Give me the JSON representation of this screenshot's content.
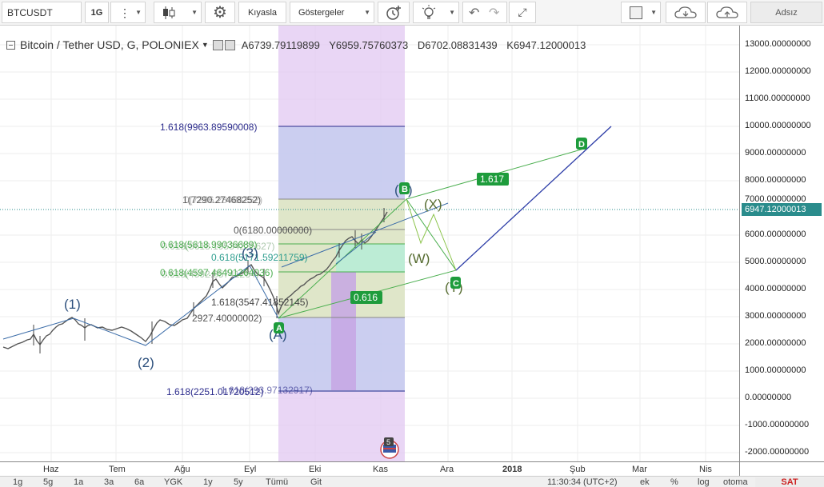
{
  "toolbar": {
    "symbol": "BTCUSDT",
    "interval": "1G",
    "compare_label": "Kıyasla",
    "indicators_label": "Göstergeler",
    "layout_name": "Adsız",
    "icons": [
      "more-vert-icon",
      "candlestick-icon",
      "gear-icon",
      "alert-icon",
      "lightbulb-icon",
      "undo-icon",
      "redo-icon",
      "fullscreen-icon",
      "layout-square-icon",
      "cloud-download-icon",
      "cloud-upload-icon"
    ]
  },
  "legend": {
    "title": "Bitcoin / Tether USD, G, POLONIEX",
    "open": "A6739.79119899",
    "high": "Y6959.75760373",
    "low": "D6702.08831439",
    "close": "K6947.12000013"
  },
  "price_axis": {
    "ticks": [
      "13000.00000000",
      "12000.00000000",
      "11000.00000000",
      "10000.00000000",
      "9000.00000000",
      "8000.00000000",
      "7000.00000000",
      "6000.00000000",
      "5000.00000000",
      "4000.00000000",
      "3000.00000000",
      "2000.00000000",
      "1000.00000000",
      "0.00000000",
      "-1000.00000000",
      "-2000.00000000"
    ],
    "current_price": "6947.12000013",
    "current_color": "#2a8c8c"
  },
  "time_axis": {
    "labels": [
      "Haz",
      "Tem",
      "Ağu",
      "Eyl",
      "Eki",
      "Kas",
      "Ara",
      "2018",
      "Şub",
      "Mar",
      "Nis"
    ]
  },
  "annotations": {
    "fib_top": "1.618(9963.89590008)",
    "fib_b": "1(7290.27468252)",
    "fib_b_overlap": "0(7296.28488252)",
    "fib_zero": "0(6180.00000000)",
    "fib_green1": "0.618(5618.99036689)",
    "fib_green1b": "0.618(5618.19534225627)",
    "fib_teal": "0.618(5171.59211759)",
    "fib_green2": "0.618(4597.46491264036)",
    "fib_green2b": "0.618(4592.85741264)",
    "fib_mid": "1.618(3547.41852145)",
    "fib_low": "2927.40000002)",
    "fib_bottom": "1.618(2251.01720512)",
    "fib_bottom2": "1.618(293.97132917)",
    "wave_1": "(1)",
    "wave_2": "(2)",
    "wave_3": "(3)",
    "wave_a": "A",
    "wave_b": "B",
    "wave_c": "C",
    "wave_d": "D",
    "wave_x": "(X)",
    "wave_w": "(W)",
    "wave_y": "(Y)",
    "wave_a_paren": "(A)",
    "wave_b_paren": "(B)",
    "ratio_1617": "1.617",
    "ratio_0616": "0.616",
    "event_badge": "5"
  },
  "bottom_bar": {
    "ranges": [
      "1g",
      "5g",
      "1a",
      "3a",
      "6a",
      "YGK",
      "1y",
      "5y",
      "Tümü",
      "Git"
    ],
    "clock": "11:30:34 (UTC+2)",
    "options": [
      "ek",
      "%",
      "log",
      "otoma"
    ],
    "sell_label": "SAT"
  }
}
